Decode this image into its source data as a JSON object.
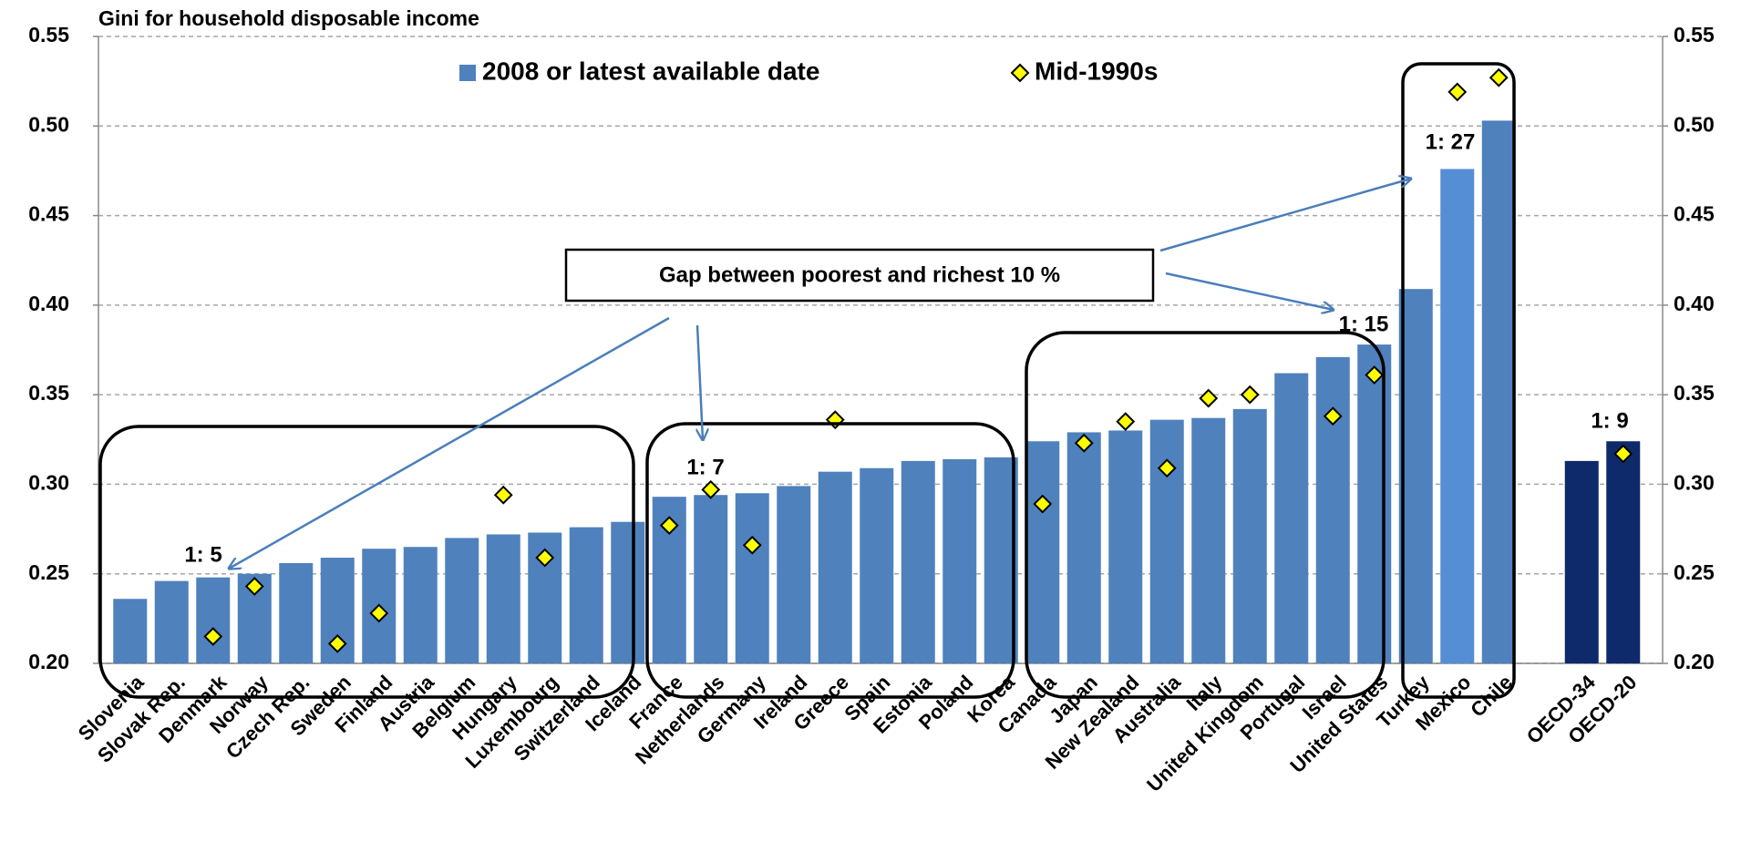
{
  "chart_data": {
    "type": "bar",
    "title": "Gini for household disposable income",
    "categories": [
      "Slovenia",
      "Slovak Rep.",
      "Denmark",
      "Norway",
      "Czech Rep.",
      "Sweden",
      "Finland",
      "Austria",
      "Belgium",
      "Hungary",
      "Luxembourg",
      "Switzerland",
      "Iceland",
      "France",
      "Netherlands",
      "Germany",
      "Ireland",
      "Greece",
      "Spain",
      "Estonia",
      "Poland",
      "Korea",
      "Canada",
      "Japan",
      "New Zealand",
      "Australia",
      "Italy",
      "United Kingdom",
      "Portugal",
      "Israel",
      "United States",
      "Turkey",
      "Mexico",
      "Chile",
      null,
      "OECD-34",
      "OECD-20"
    ],
    "series": [
      {
        "name": "2008 or latest available date",
        "type": "bar",
        "color": "#4f81bd",
        "point_colors": [
          "#4f81bd",
          "#4f81bd",
          "#4f81bd",
          "#4f81bd",
          "#4f81bd",
          "#4f81bd",
          "#4f81bd",
          "#4f81bd",
          "#4f81bd",
          "#4f81bd",
          "#4f81bd",
          "#4f81bd",
          "#4f81bd",
          "#4f81bd",
          "#4f81bd",
          "#4f81bd",
          "#4f81bd",
          "#4f81bd",
          "#4f81bd",
          "#4f81bd",
          "#4f81bd",
          "#4f81bd",
          "#4f81bd",
          "#4f81bd",
          "#4f81bd",
          "#4f81bd",
          "#4f81bd",
          "#4f81bd",
          "#4f81bd",
          "#4f81bd",
          "#4f81bd",
          "#4f81bd",
          "#558ed5",
          "#4f81bd",
          null,
          "#0f2a6b",
          "#0f2a6b"
        ],
        "values": [
          0.236,
          0.246,
          0.248,
          0.25,
          0.256,
          0.259,
          0.264,
          0.265,
          0.27,
          0.272,
          0.273,
          0.276,
          0.279,
          0.293,
          0.294,
          0.295,
          0.299,
          0.307,
          0.309,
          0.313,
          0.314,
          0.315,
          0.324,
          0.329,
          0.33,
          0.336,
          0.337,
          0.342,
          0.362,
          0.371,
          0.378,
          0.409,
          0.476,
          0.503,
          null,
          0.313,
          0.324
        ]
      },
      {
        "name": "Mid-1990s",
        "type": "marker",
        "color": "#ffff00",
        "values": [
          null,
          null,
          0.215,
          0.243,
          null,
          0.211,
          0.228,
          null,
          null,
          0.294,
          0.259,
          null,
          null,
          0.277,
          0.297,
          0.266,
          null,
          0.336,
          null,
          null,
          null,
          null,
          0.289,
          0.323,
          0.335,
          0.309,
          0.348,
          0.35,
          null,
          0.338,
          0.361,
          null,
          0.519,
          0.527,
          null,
          null,
          0.317
        ]
      }
    ],
    "annotations": [
      "Gap between poorest and richest 10 %",
      "1: 5",
      "1: 7",
      "1: 15",
      "1: 27",
      "1: 9"
    ],
    "ylim": [
      0.2,
      0.55
    ],
    "yticks": [
      {
        "value": 0.2,
        "label": "0.20"
      },
      {
        "value": 0.25,
        "label": "0.25"
      },
      {
        "value": 0.3,
        "label": "0.30"
      },
      {
        "value": 0.35,
        "label": "0.35"
      },
      {
        "value": 0.4,
        "label": "0.40"
      },
      {
        "value": 0.45,
        "label": "0.45"
      },
      {
        "value": 0.5,
        "label": "0.50"
      },
      {
        "value": 0.55,
        "label": "0.55"
      }
    ],
    "y2lim": [
      0.2,
      0.55
    ],
    "y2ticks": [
      {
        "value": 0.2,
        "label": "0.20"
      },
      {
        "value": 0.25,
        "label": "0.25"
      },
      {
        "value": 0.3,
        "label": "0.30"
      },
      {
        "value": 0.35,
        "label": "0.35"
      },
      {
        "value": 0.4,
        "label": "0.40"
      },
      {
        "value": 0.45,
        "label": "0.45"
      },
      {
        "value": 0.5,
        "label": "0.50"
      },
      {
        "value": 0.55,
        "label": "0.55"
      }
    ],
    "grid": true,
    "legend": "top"
  }
}
